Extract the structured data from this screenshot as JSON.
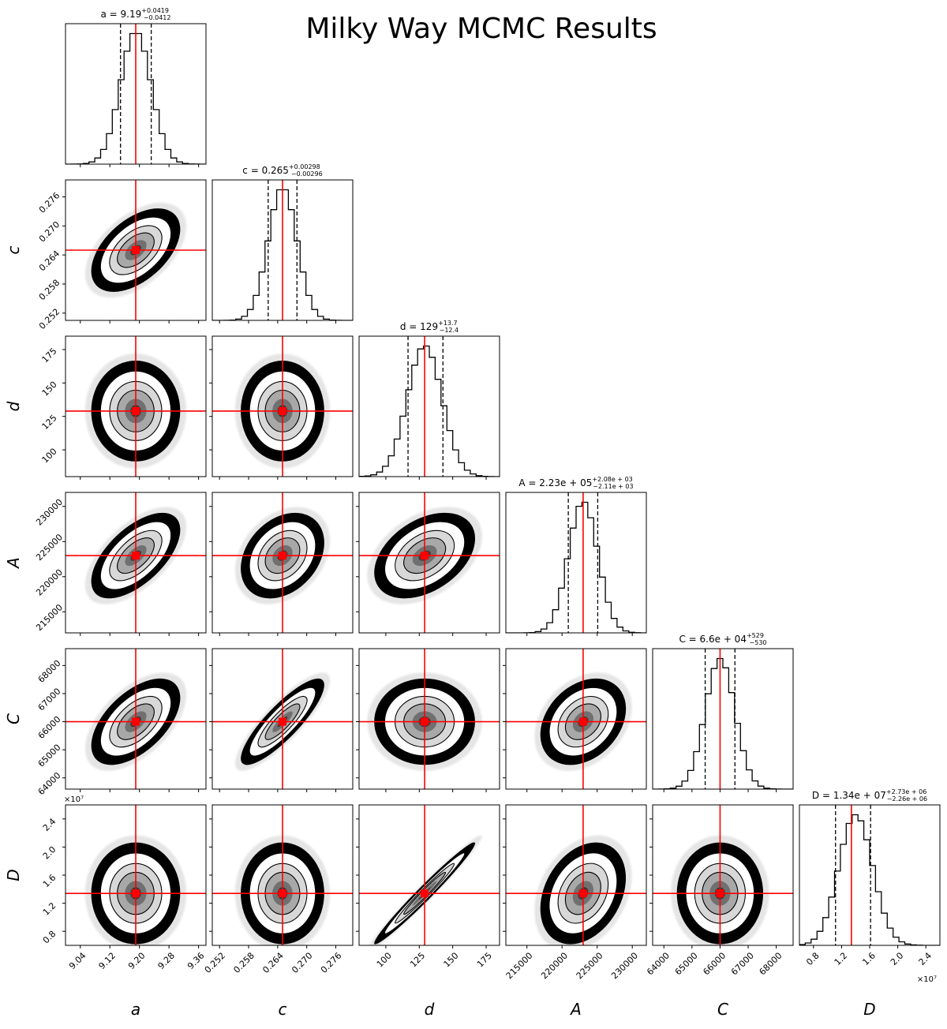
{
  "figure": {
    "title": "Milky Way MCMC Results"
  },
  "chart_data": {
    "type": "corner",
    "title": "Milky Way MCMC Results",
    "parameters": [
      {
        "symbol": "a",
        "label": "a",
        "range": [
          9.0,
          9.38
        ],
        "ticks": [
          9.04,
          9.12,
          9.2,
          9.28,
          9.36
        ],
        "tick_labels": [
          "9.04",
          "9.12",
          "9.20",
          "9.28",
          "9.36"
        ],
        "median": 9.19,
        "lo": 9.1488,
        "hi": 9.2319,
        "sigma": 0.0415,
        "hist_title": {
          "lhs": "a = 9.19",
          "plus": "+0.0419",
          "minus": "−0.0412"
        },
        "offset_text": ""
      },
      {
        "symbol": "c",
        "label": "c",
        "range": [
          0.2505,
          0.2795
        ],
        "ticks": [
          0.252,
          0.258,
          0.264,
          0.27,
          0.276
        ],
        "tick_labels": [
          "0.252",
          "0.258",
          "0.264",
          "0.270",
          "0.276"
        ],
        "median": 0.265,
        "lo": 0.26204,
        "hi": 0.26798,
        "sigma": 0.00297,
        "hist_title": {
          "lhs": "c = 0.265",
          "plus": "+0.00298",
          "minus": "−0.00296"
        },
        "offset_text": ""
      },
      {
        "symbol": "d",
        "label": "d",
        "range": [
          80,
          185
        ],
        "ticks": [
          100,
          125,
          150,
          175
        ],
        "tick_labels": [
          "100",
          "125",
          "150",
          "175"
        ],
        "median": 129,
        "lo": 116.6,
        "hi": 142.7,
        "sigma": 13,
        "hist_title": {
          "lhs": "d = 129",
          "plus": "+13.7",
          "minus": "−12.4"
        },
        "offset_text": ""
      },
      {
        "symbol": "A",
        "label": "A",
        "range": [
          212000,
          232000
        ],
        "ticks": [
          215000,
          220000,
          225000,
          230000
        ],
        "tick_labels": [
          "215000",
          "220000",
          "225000",
          "230000"
        ],
        "median": 223000,
        "lo": 220890,
        "hi": 225080,
        "sigma": 2100,
        "hist_title": {
          "lhs": "A = 2.23e + 05",
          "plus": "+2.08e + 03",
          "minus": "−2.11e + 03"
        },
        "offset_text": ""
      },
      {
        "symbol": "C",
        "label": "C",
        "range": [
          63600,
          68600
        ],
        "ticks": [
          64000,
          65000,
          66000,
          67000,
          68000
        ],
        "tick_labels": [
          "64000",
          "65000",
          "66000",
          "67000",
          "68000"
        ],
        "median": 66000,
        "lo": 65470,
        "hi": 66529,
        "sigma": 530,
        "hist_title": {
          "lhs": "C = 6.6e + 04",
          "plus": "+529",
          "minus": "−530"
        },
        "offset_text": ""
      },
      {
        "symbol": "D",
        "label": "D",
        "range": [
          6000000,
          26000000
        ],
        "ticks": [
          8000000,
          12000000,
          16000000,
          20000000,
          24000000
        ],
        "tick_labels": [
          "0.8",
          "1.2",
          "1.6",
          "2.0",
          "2.4"
        ],
        "median": 13400000,
        "lo": 11140000,
        "hi": 16130000,
        "sigma": 2500000,
        "hist_title": {
          "lhs": "D = 1.34e + 07",
          "plus": "+2.73e + 06",
          "minus": "−2.26e + 06"
        },
        "offset_text": "×10⁷"
      }
    ],
    "correlations": [
      [
        1.0,
        0.5,
        0.0,
        0.6,
        0.55,
        0.0
      ],
      [
        0.5,
        1.0,
        0.0,
        0.3,
        0.85,
        0.0
      ],
      [
        0.0,
        0.0,
        1.0,
        0.4,
        0.0,
        0.98
      ],
      [
        0.6,
        0.3,
        0.4,
        1.0,
        0.3,
        0.3
      ],
      [
        0.55,
        0.85,
        0.0,
        0.3,
        1.0,
        0.0
      ],
      [
        0.0,
        0.0,
        0.98,
        0.3,
        0.0,
        1.0
      ]
    ],
    "truth_color": "#ff0000",
    "quantile_lines": "dashed",
    "contour_levels": 3
  }
}
